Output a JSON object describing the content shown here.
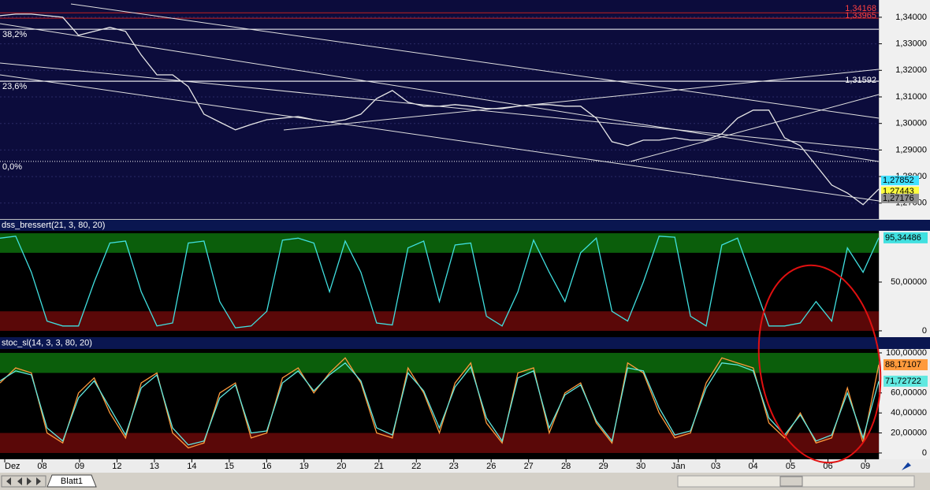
{
  "chart_data": [
    {
      "type": "line",
      "series": [
        {
          "color": "#e8e8e8",
          "values": [
            1.3406,
            1.3412,
            1.3412,
            1.3406,
            1.34,
            1.3332,
            1.3347,
            1.3362,
            1.3347,
            1.3258,
            1.3183,
            1.3183,
            1.3139,
            1.3035,
            1.3005,
            1.2976,
            1.2996,
            1.3014,
            1.302,
            1.3026,
            1.3014,
            1.3005,
            1.3014,
            1.3035,
            1.3094,
            1.3124,
            1.308,
            1.3065,
            1.3065,
            1.3071,
            1.3065,
            1.3056,
            1.3056,
            1.3065,
            1.3071,
            1.3071,
            1.3065,
            1.3065,
            1.302,
            1.2931,
            1.2916,
            1.2937,
            1.2937,
            1.2946,
            1.2937,
            1.2937,
            1.2961,
            1.302,
            1.305,
            1.305,
            1.2946,
            1.2916,
            1.2842,
            1.2768,
            1.2738,
            1.2694,
            1.2753
          ]
        }
      ],
      "ylim": [
        1.264,
        1.3465
      ],
      "yticks": [
        {
          "value": 1.27,
          "label": "1,27000"
        },
        {
          "value": 1.28,
          "label": "1,28000"
        },
        {
          "value": 1.29,
          "label": "1,29000"
        },
        {
          "value": 1.3,
          "label": "1,30000"
        },
        {
          "value": 1.31,
          "label": "1,31000"
        },
        {
          "value": 1.32,
          "label": "1,32000"
        },
        {
          "value": 1.33,
          "label": "1,33000"
        },
        {
          "value": 1.34,
          "label": "1,34000"
        }
      ],
      "grid": true,
      "levels": [
        {
          "value": 1.34168,
          "label": "1,34168",
          "color": "#ff4040"
        },
        {
          "value": 1.33965,
          "label": "1,33965",
          "color": "#ff4040"
        },
        {
          "value": 1.31592,
          "label": "1,31592",
          "color": "#ffffff"
        }
      ],
      "fib_levels": [
        {
          "value": 1.3355,
          "label": "38,2%"
        },
        {
          "value": 1.3159,
          "label": "23,6%"
        },
        {
          "value": 1.2857,
          "label": "0,0%"
        }
      ],
      "markers": [
        {
          "value": 1.27852,
          "label": "1,27852",
          "color": "#40e0ff"
        },
        {
          "value": 1.27443,
          "label": "1,27443",
          "color": "#ffff40"
        },
        {
          "value": 1.27176,
          "label": "1,27176",
          "color": "#909090"
        }
      ]
    },
    {
      "type": "line",
      "title": "dss_bressert(21, 3, 80, 20)",
      "series": [
        {
          "color": "#40e0e0",
          "values": [
            95,
            97,
            60,
            10,
            5,
            5,
            50,
            90,
            92,
            40,
            5,
            8,
            90,
            92,
            30,
            3,
            5,
            20,
            93,
            95,
            90,
            40,
            92,
            60,
            8,
            6,
            85,
            92,
            30,
            88,
            90,
            15,
            5,
            40,
            93,
            60,
            30,
            80,
            95,
            20,
            10,
            50,
            97,
            96,
            15,
            5,
            88,
            95,
            50,
            5,
            5,
            8,
            30,
            10,
            85,
            60,
            95.34486
          ],
          "last_label": "95,34486"
        }
      ],
      "ylim": [
        -6.5,
        102.5
      ],
      "yticks": [
        0,
        {
          "value": 50,
          "label": "50,00000"
        }
      ],
      "bands": [
        {
          "from": 80,
          "to": 100,
          "color": "#0b5e0b"
        },
        {
          "from": 0,
          "to": 20,
          "color": "#5a0808"
        }
      ]
    },
    {
      "type": "line",
      "title": "stoc_sl(14, 3, 3, 80, 20)",
      "series": [
        {
          "color": "#ff9a3c",
          "values": [
            70,
            85,
            80,
            20,
            10,
            60,
            75,
            40,
            15,
            70,
            80,
            20,
            5,
            10,
            60,
            70,
            15,
            20,
            75,
            85,
            60,
            80,
            95,
            70,
            20,
            15,
            85,
            60,
            20,
            70,
            90,
            30,
            10,
            80,
            85,
            20,
            60,
            70,
            30,
            10,
            90,
            80,
            40,
            15,
            20,
            70,
            95,
            90,
            85,
            30,
            15,
            40,
            10,
            15,
            65,
            10,
            88.17107
          ],
          "last_label": "88,17107"
        },
        {
          "color": "#60e8e0",
          "values": [
            72,
            82,
            78,
            25,
            12,
            55,
            72,
            45,
            18,
            65,
            78,
            25,
            8,
            12,
            55,
            68,
            20,
            22,
            70,
            82,
            62,
            78,
            90,
            72,
            25,
            18,
            80,
            62,
            25,
            66,
            86,
            35,
            12,
            75,
            82,
            25,
            58,
            68,
            32,
            12,
            85,
            82,
            45,
            18,
            22,
            65,
            90,
            88,
            82,
            35,
            18,
            38,
            12,
            18,
            60,
            15,
            71.72722
          ],
          "last_label": "71,72722"
        }
      ],
      "ylim": [
        -6.3,
        103.9
      ],
      "yticks": [
        0,
        {
          "value": 20,
          "label": "20,00000"
        },
        {
          "value": 40,
          "label": "40,00000"
        },
        {
          "value": 60,
          "label": "60,00000"
        },
        {
          "value": 100,
          "label": "100,00000"
        }
      ],
      "bands": [
        {
          "from": 80,
          "to": 100,
          "color": "#0b5e0b"
        },
        {
          "from": 0,
          "to": 20,
          "color": "#5a0808"
        }
      ]
    }
  ],
  "x_axis": {
    "labels": [
      "Dez",
      "08",
      "09",
      "12",
      "13",
      "14",
      "15",
      "16",
      "19",
      "20",
      "21",
      "22",
      "23",
      "26",
      "27",
      "28",
      "29",
      "30",
      "Jan",
      "03",
      "04",
      "05",
      "06",
      "09"
    ]
  },
  "sheet_tabs": [
    "Blatt1"
  ]
}
